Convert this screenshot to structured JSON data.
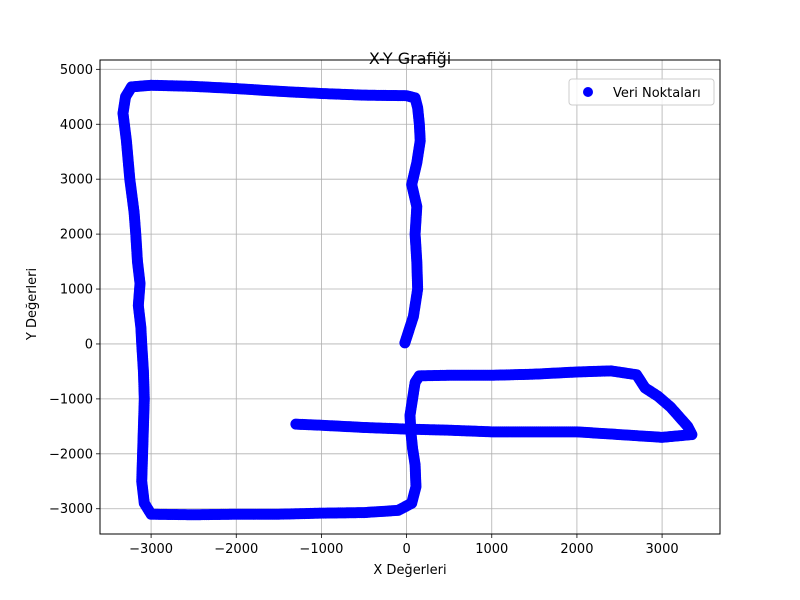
{
  "chart_data": {
    "type": "scatter",
    "title": "X-Y Grafiği",
    "xlabel": "X Değerleri",
    "ylabel": "Y Değerleri",
    "xlim": [
      -3600,
      3680
    ],
    "ylim": [
      -3460,
      5170
    ],
    "xticks": [
      -3000,
      -2000,
      -1000,
      0,
      1000,
      2000,
      3000
    ],
    "yticks": [
      -3000,
      -2000,
      -1000,
      0,
      1000,
      2000,
      3000,
      4000,
      5000
    ],
    "xtick_labels": [
      "−3000",
      "−2000",
      "−1000",
      "0",
      "1000",
      "2000",
      "3000"
    ],
    "ytick_labels": [
      "−3000",
      "−2000",
      "−1000",
      "0",
      "1000",
      "2000",
      "3000",
      "4000",
      "5000"
    ],
    "grid": true,
    "legend_position": "top-right",
    "colors": {
      "series": "#0000ff",
      "grid": "#b0b0b0"
    },
    "series": [
      {
        "name": "Veri Noktaları",
        "path_vertices": [
          [
            -20,
            20
          ],
          [
            80,
            500
          ],
          [
            130,
            1000
          ],
          [
            120,
            1500
          ],
          [
            100,
            2000
          ],
          [
            120,
            2500
          ],
          [
            60,
            2900
          ],
          [
            120,
            3300
          ],
          [
            160,
            3700
          ],
          [
            150,
            4000
          ],
          [
            130,
            4300
          ],
          [
            100,
            4480
          ],
          [
            0,
            4520
          ],
          [
            -500,
            4530
          ],
          [
            -1000,
            4560
          ],
          [
            -1500,
            4600
          ],
          [
            -2000,
            4650
          ],
          [
            -2500,
            4690
          ],
          [
            -3000,
            4710
          ],
          [
            -3230,
            4680
          ],
          [
            -3300,
            4500
          ],
          [
            -3330,
            4200
          ],
          [
            -3290,
            3700
          ],
          [
            -3250,
            3000
          ],
          [
            -3200,
            2400
          ],
          [
            -3180,
            2000
          ],
          [
            -3160,
            1500
          ],
          [
            -3130,
            1100
          ],
          [
            -3150,
            700
          ],
          [
            -3120,
            300
          ],
          [
            -3110,
            0
          ],
          [
            -3090,
            -500
          ],
          [
            -3080,
            -1000
          ],
          [
            -3090,
            -1500
          ],
          [
            -3100,
            -2000
          ],
          [
            -3110,
            -2500
          ],
          [
            -3080,
            -2900
          ],
          [
            -3000,
            -3100
          ],
          [
            -2500,
            -3110
          ],
          [
            -2000,
            -3100
          ],
          [
            -1500,
            -3100
          ],
          [
            -1000,
            -3080
          ],
          [
            -500,
            -3070
          ],
          [
            -100,
            -3030
          ],
          [
            60,
            -2900
          ],
          [
            110,
            -2600
          ],
          [
            100,
            -2200
          ],
          [
            70,
            -1900
          ],
          [
            50,
            -1600
          ],
          [
            40,
            -1300
          ],
          [
            70,
            -1000
          ],
          [
            100,
            -700
          ],
          [
            150,
            -580
          ],
          [
            500,
            -570
          ],
          [
            1000,
            -570
          ],
          [
            1500,
            -550
          ],
          [
            2000,
            -510
          ],
          [
            2400,
            -490
          ],
          [
            2700,
            -560
          ],
          [
            2800,
            -800
          ],
          [
            2950,
            -950
          ],
          [
            3100,
            -1150
          ],
          [
            3300,
            -1500
          ],
          [
            3350,
            -1650
          ],
          [
            3000,
            -1700
          ],
          [
            2500,
            -1650
          ],
          [
            2000,
            -1600
          ],
          [
            1500,
            -1600
          ],
          [
            1000,
            -1600
          ],
          [
            500,
            -1570
          ],
          [
            0,
            -1550
          ],
          [
            -500,
            -1520
          ],
          [
            -1000,
            -1480
          ],
          [
            -1300,
            -1460
          ]
        ]
      }
    ]
  }
}
